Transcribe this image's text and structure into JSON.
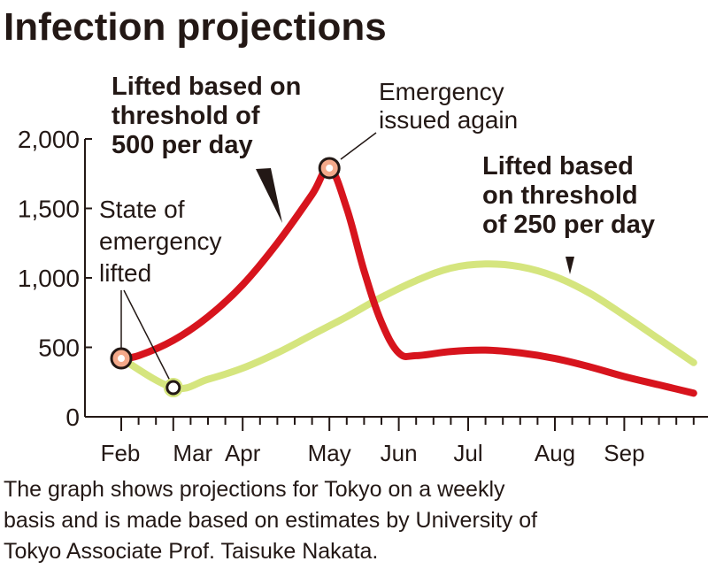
{
  "chart_data": {
    "type": "line",
    "title": "Infection projections",
    "xlabel": "",
    "ylabel": "",
    "ylim": [
      0,
      2000
    ],
    "yticks": [
      0,
      500,
      1000,
      1500,
      2000
    ],
    "ytick_labels": [
      "0",
      "500",
      "1,000",
      "1,500",
      "2,000"
    ],
    "x_unit": "weeks from early Feb",
    "xlim": [
      0,
      33
    ],
    "month_ticks": [
      {
        "label": "Feb",
        "week": 0
      },
      {
        "label": "Mar",
        "week": 3
      },
      {
        "label": "Apr",
        "week": 7
      },
      {
        "label": "May",
        "week": 12
      },
      {
        "label": "Jun",
        "week": 16
      },
      {
        "label": "Jul",
        "week": 20
      },
      {
        "label": "Aug",
        "week": 25
      },
      {
        "label": "Sep",
        "week": 29
      }
    ],
    "series": [
      {
        "name": "Lifted based on threshold of 500 per day",
        "color": "#d7141d",
        "x": [
          0,
          1,
          3,
          5,
          7,
          9,
          11,
          12,
          13,
          14,
          15,
          16,
          17,
          19,
          21,
          23,
          25,
          27,
          29,
          31,
          33
        ],
        "y": [
          420,
          440,
          550,
          720,
          950,
          1250,
          1600,
          1790,
          1500,
          1050,
          680,
          460,
          440,
          470,
          480,
          460,
          420,
          360,
          290,
          230,
          170
        ]
      },
      {
        "name": "Lifted based on threshold of 250 per day",
        "color": "#d5e57e",
        "x": [
          0,
          3,
          5,
          7,
          9,
          11,
          13,
          15,
          17,
          19,
          21,
          23,
          25,
          27,
          29,
          31,
          33
        ],
        "y": [
          420,
          210,
          270,
          350,
          460,
          590,
          720,
          860,
          980,
          1070,
          1100,
          1080,
          1010,
          890,
          730,
          560,
          390
        ]
      }
    ],
    "annotations": {
      "red_label": [
        "Lifted based on",
        "threshold of",
        "500 per day"
      ],
      "green_label": [
        "Lifted based",
        "on threshold",
        "of 250 per day"
      ],
      "issued": [
        "Emergency",
        "issued again"
      ],
      "lifted": [
        "State of",
        "emergency",
        "lifted"
      ]
    },
    "caption": [
      "The graph shows projections for Tokyo on a weekly",
      "basis and is made based on estimates by University of",
      "Tokyo Associate Prof. Taisuke Nakata."
    ]
  }
}
